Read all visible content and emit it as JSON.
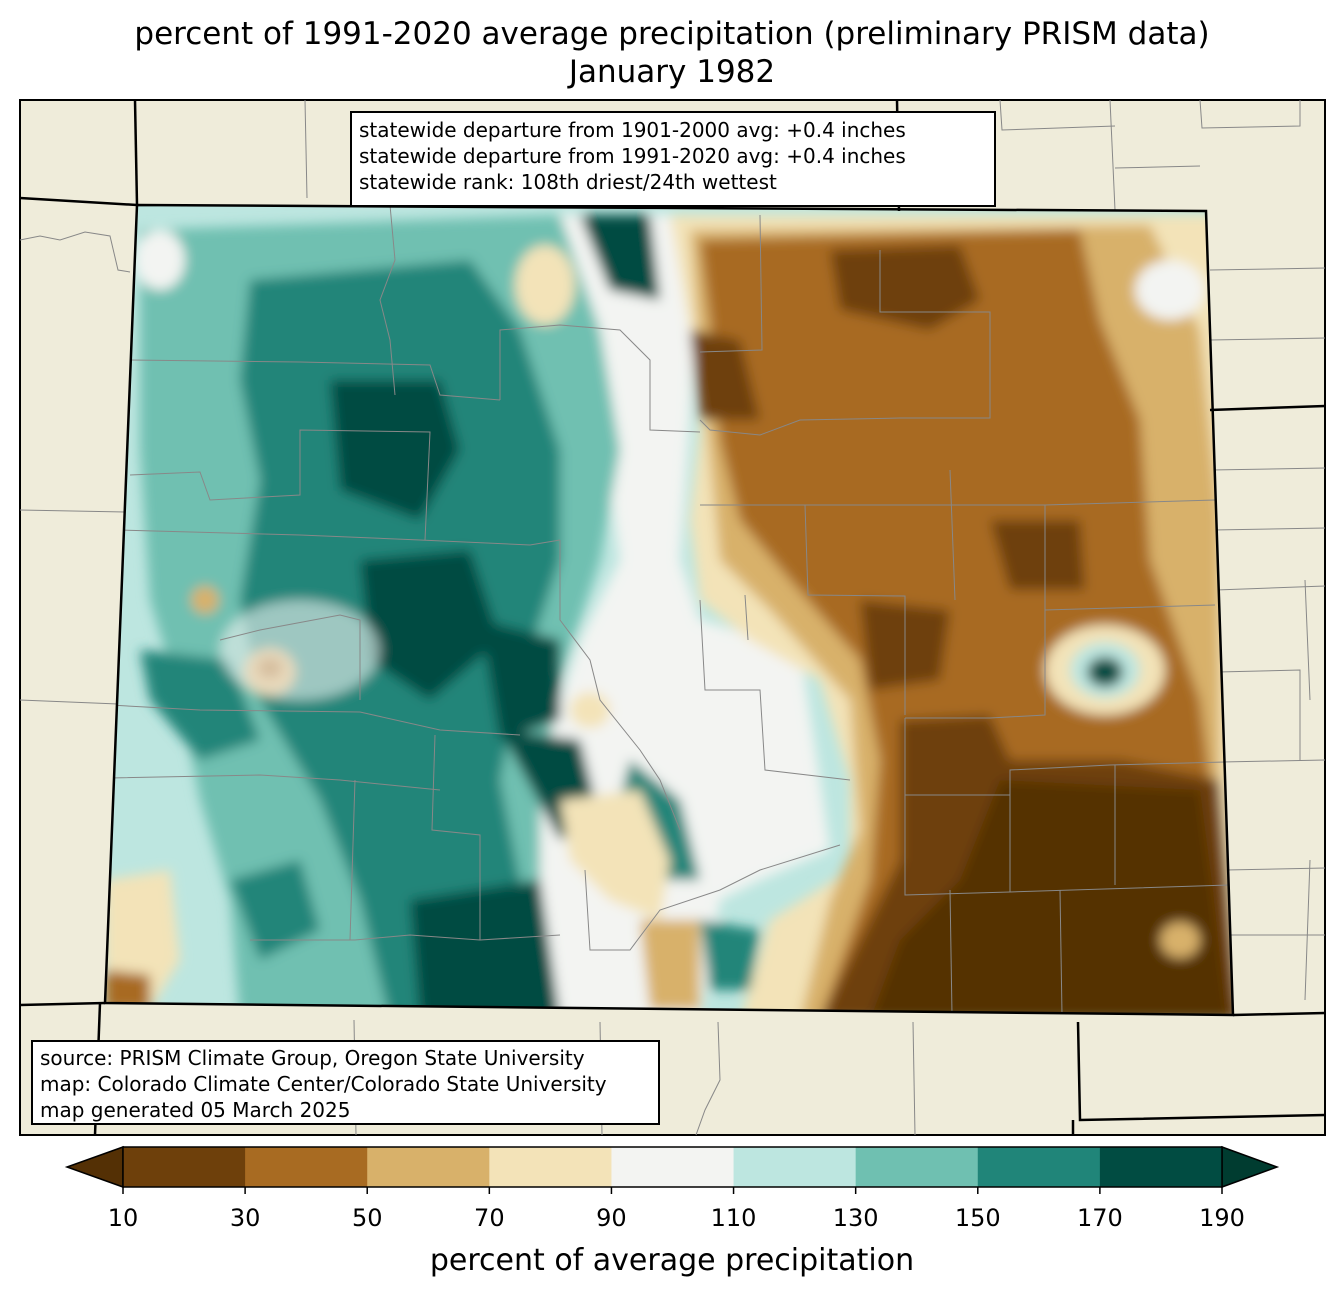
{
  "title": {
    "line1": "percent of 1991-2020 average precipitation (preliminary PRISM data)",
    "line2": "January 1982"
  },
  "stats_box": {
    "line1": "statewide departure from 1901-2000 avg: +0.4 inches",
    "line2": "statewide departure from 1991-2020 avg: +0.4 inches",
    "line3": "statewide rank: 108th driest/24th wettest"
  },
  "credits_box": {
    "line1": "source: PRISM Climate Group, Oregon State University",
    "line2": "map: Colorado Climate Center/Colorado State University",
    "line3": "map generated 05 March 2025"
  },
  "colorbar": {
    "label": "percent of average precipitation",
    "ticks": [
      "10",
      "30",
      "50",
      "70",
      "90",
      "110",
      "130",
      "150",
      "170",
      "190"
    ],
    "colors": {
      "under": "#543005",
      "bins": [
        "#6e400b",
        "#a86b22",
        "#d8b16a",
        "#f3e3b8",
        "#f3f4f2",
        "#bde6e0",
        "#6fc0b1",
        "#208579",
        "#014c42"
      ],
      "over": "#003c30"
    }
  },
  "map_colors": {
    "background": "#efecda",
    "state_border": "#000000",
    "county_lines": "#888888"
  }
}
